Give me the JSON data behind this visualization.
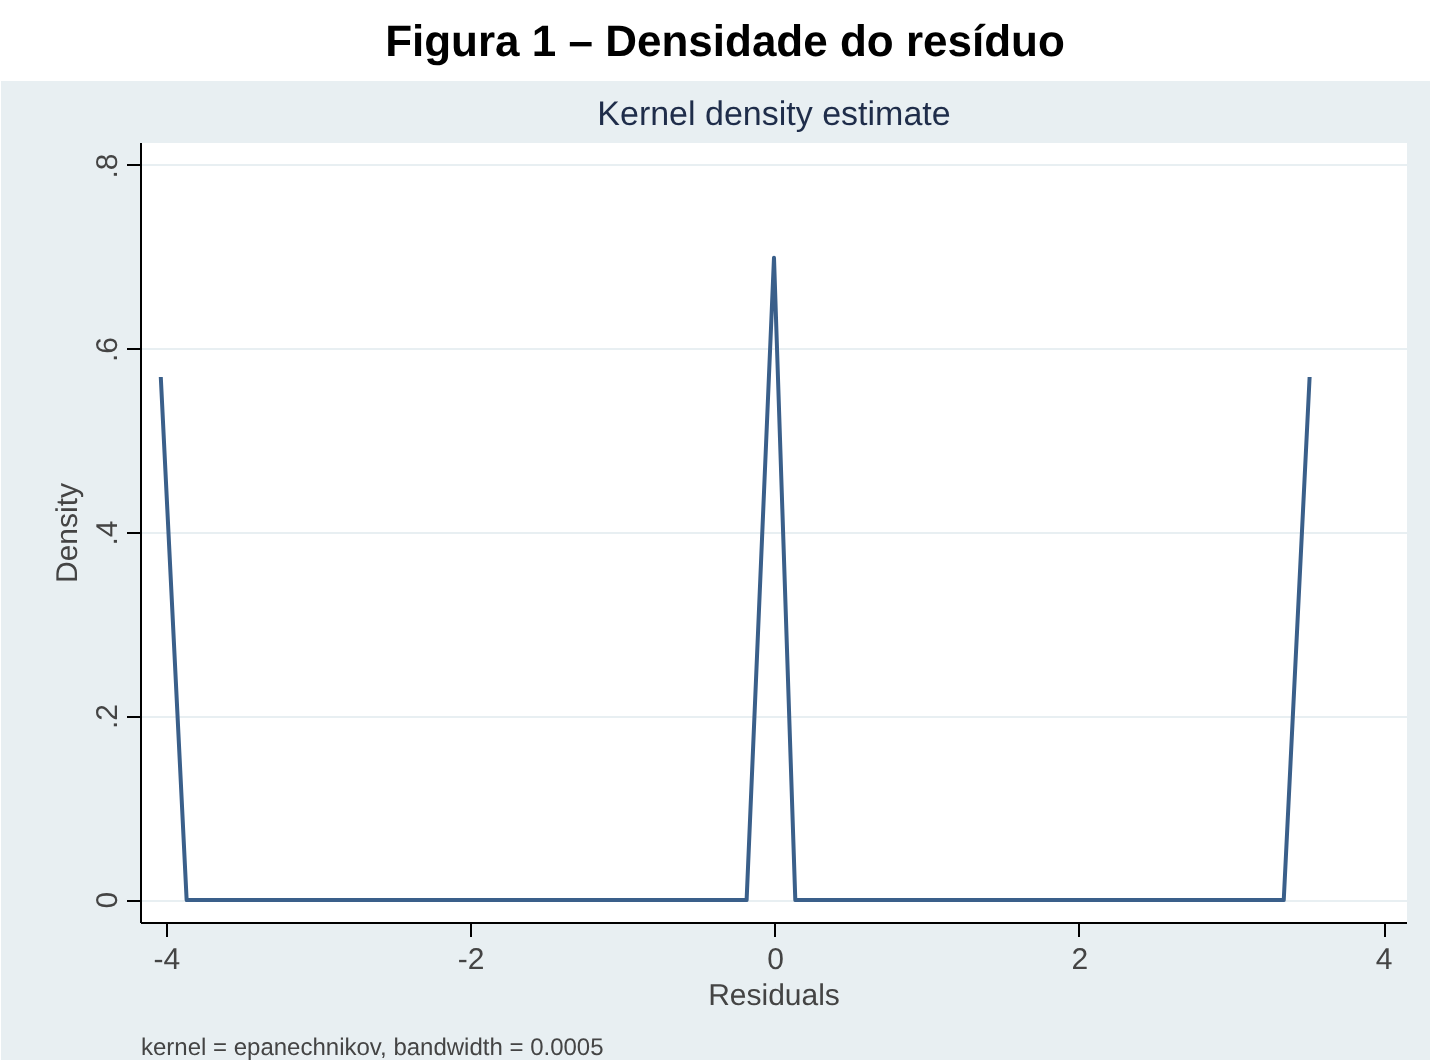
{
  "chart_data": {
    "type": "line",
    "title": "Figura 1 – Densidade do resíduo",
    "subtitle": "Kernel density estimate",
    "xlabel": "Residuals",
    "ylabel": "Density",
    "x": [
      -4.04,
      -3.87,
      -0.19,
      -0.01,
      0.13,
      3.34,
      3.51
    ],
    "series": [
      {
        "color": "#3a5f8a",
        "values": [
          0.57,
          0,
          0,
          0.7,
          0,
          0,
          0.57
        ]
      }
    ],
    "xlim": [
      -4.17,
      4.15
    ],
    "ylim": [
      -0.025,
      0.825
    ],
    "xticks": [
      -4,
      -2,
      0,
      2,
      4
    ],
    "yticks": [
      0,
      {
        "value": 0.2,
        "label": ".2"
      },
      {
        "value": 0.4,
        "label": ".4"
      },
      {
        "value": 0.6,
        "label": ".6"
      },
      {
        "value": 0.8,
        "label": ".8"
      }
    ],
    "grid": "y",
    "marker": "none",
    "line_style": "solid",
    "annotations": [
      "kernel = epanechnikov, bandwidth = 0.0005"
    ]
  }
}
